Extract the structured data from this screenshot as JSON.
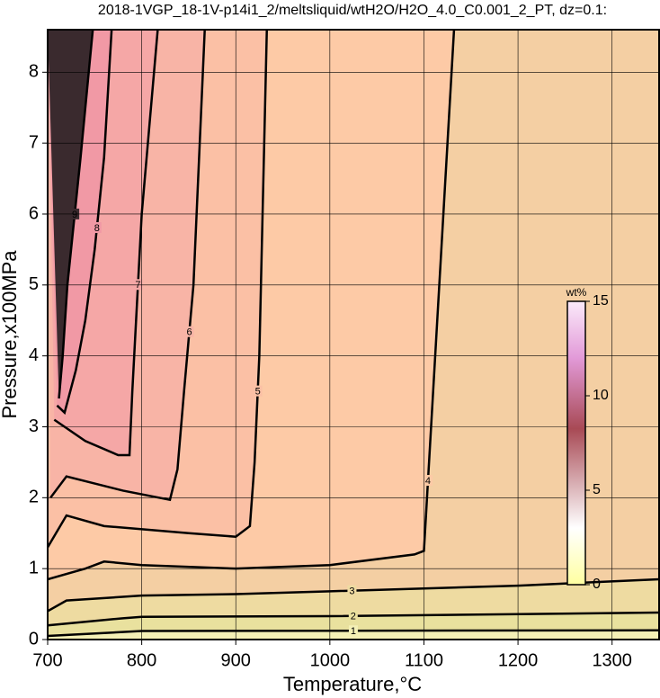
{
  "chart_data": {
    "type": "contour",
    "title": "2018-1VGP_18-1V-p14i1_2/meltsliquid/wtH2O/H2O_4.0_C0.001_2_PT, dz=0.1:",
    "x_label": "Temperature,°C",
    "y_label": "Pressure,x100MPa",
    "xlim": [
      700,
      1350
    ],
    "ylim": [
      0,
      8.6
    ],
    "xticks": [
      700,
      800,
      900,
      1000,
      1100,
      1200,
      1300
    ],
    "yticks": [
      0,
      1,
      2,
      3,
      4,
      5,
      6,
      7,
      8
    ],
    "grid": true,
    "background": "#f4cfa3",
    "line_color": "#000000",
    "contours": [
      {
        "level": 4,
        "fill": "#fdcaa6",
        "x": [
          700,
          740,
          760,
          800,
          900,
          1000,
          1090,
          1100,
          1132
        ],
        "y": [
          0.85,
          1.0,
          1.1,
          1.05,
          1.0,
          1.05,
          1.2,
          1.25,
          8.6
        ]
      },
      {
        "level": 5,
        "fill": "#fbc0a5",
        "x": [
          700,
          720,
          760,
          850,
          900,
          915,
          920,
          925,
          933
        ],
        "y": [
          1.3,
          1.75,
          1.6,
          1.5,
          1.45,
          1.6,
          2.5,
          4.0,
          8.6
        ]
      },
      {
        "level": 6,
        "fill": "#f8b4a6",
        "x": [
          703,
          720,
          780,
          830,
          838,
          845,
          855,
          867
        ],
        "y": [
          2.0,
          2.3,
          2.1,
          1.97,
          2.4,
          3.5,
          5.0,
          8.6
        ]
      },
      {
        "level": 7,
        "fill": "#f5a7a6",
        "x": [
          707,
          740,
          775,
          787,
          790,
          800,
          817
        ],
        "y": [
          3.1,
          2.8,
          2.6,
          2.6,
          3.5,
          6.0,
          8.6
        ]
      },
      {
        "level": 8,
        "fill": "#f199a5",
        "x": [
          710,
          718,
          730,
          740,
          750,
          760,
          768
        ],
        "y": [
          3.3,
          3.2,
          3.8,
          4.5,
          5.5,
          6.8,
          8.6
        ]
      },
      {
        "level": 9,
        "fill": "#3a2a2e",
        "x": [
          712,
          716,
          721,
          735,
          748
        ],
        "y": [
          3.4,
          4.0,
          5.0,
          6.8,
          8.6
        ]
      },
      {
        "level": 3,
        "fill": "#eedba1",
        "x": [
          700,
          720,
          800,
          900,
          1000,
          1100,
          1200,
          1350
        ],
        "y": [
          0.4,
          0.55,
          0.62,
          0.64,
          0.68,
          0.72,
          0.76,
          0.85
        ]
      },
      {
        "level": 2,
        "fill": "#e9e19e",
        "x": [
          700,
          780,
          800,
          1000,
          1350
        ],
        "y": [
          0.2,
          0.3,
          0.32,
          0.33,
          0.38
        ]
      },
      {
        "level": 1,
        "fill": "#f4f0b6",
        "x": [
          700,
          800,
          1350
        ],
        "y": [
          0.05,
          0.12,
          0.13
        ]
      }
    ],
    "colorbar": {
      "label": "wt%",
      "lim": [
        0,
        15
      ],
      "ticks": [
        0,
        5,
        10,
        15
      ]
    }
  }
}
